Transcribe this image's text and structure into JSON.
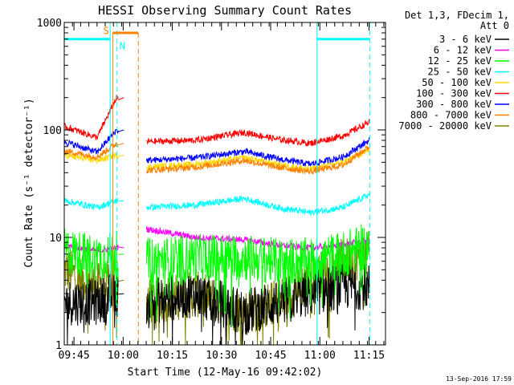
{
  "chart_data": {
    "type": "line",
    "title": "HESSI Observing Summary Count Rates",
    "xlabel": "Start Time (12-May-16 09:42:02)",
    "ylabel": "Count Rate (s⁻¹ detector⁻¹)",
    "yscale": "log",
    "ylim": [
      1,
      1000
    ],
    "y_ticks": [
      {
        "value": 1,
        "label": "1"
      },
      {
        "value": 10,
        "label": "10"
      },
      {
        "value": 100,
        "label": "100"
      },
      {
        "value": 1000,
        "label": "1000"
      }
    ],
    "x_unit": "minutes after 09:42:02",
    "xlim": [
      0,
      98
    ],
    "x_ticks": [
      {
        "value": 2.97,
        "label": "09:45"
      },
      {
        "value": 17.97,
        "label": "10:00"
      },
      {
        "value": 32.97,
        "label": "10:15"
      },
      {
        "value": 47.97,
        "label": "10:30"
      },
      {
        "value": 62.97,
        "label": "10:45"
      },
      {
        "value": 77.97,
        "label": "11:00"
      },
      {
        "value": 92.97,
        "label": "11:15"
      }
    ],
    "legend": {
      "header": [
        "Det 1,3, FDecim 1,",
        "Att 0"
      ],
      "placement": "right"
    },
    "series": [
      {
        "name": "3 - 6 keV",
        "color": "#000000",
        "x": [
          0,
          10,
          16,
          25,
          40,
          55,
          65,
          75,
          85,
          93
        ],
        "values": [
          2.5,
          2.5,
          3.0,
          2.5,
          3.0,
          2.0,
          2.5,
          3.0,
          3.5,
          3.5
        ]
      },
      {
        "name": "6 - 12 keV",
        "color": "#ff00ff",
        "x": [
          0,
          10,
          16,
          25,
          40,
          55,
          65,
          75,
          85,
          93
        ],
        "values": [
          8.5,
          7.5,
          8.0,
          12.0,
          10.0,
          9.5,
          8.5,
          8.0,
          8.5,
          9.5
        ]
      },
      {
        "name": "12 - 25 keV",
        "color": "#00ff00",
        "x": [
          0,
          10,
          16,
          25,
          40,
          55,
          65,
          75,
          85,
          93
        ],
        "values": [
          7.5,
          6.5,
          7.0,
          6.0,
          6.5,
          6.5,
          6.0,
          6.0,
          7.0,
          8.5
        ]
      },
      {
        "name": "25 - 50 keV",
        "color": "#00ffff",
        "x": [
          0,
          10,
          16,
          25,
          40,
          55,
          65,
          75,
          85,
          93
        ],
        "values": [
          22,
          19,
          22,
          19,
          20,
          23,
          19,
          17,
          19,
          25
        ]
      },
      {
        "name": "50 - 100 keV",
        "color": "#ffd700",
        "x": [
          0,
          10,
          16,
          25,
          40,
          55,
          65,
          75,
          85,
          93
        ],
        "values": [
          58,
          52,
          58,
          45,
          48,
          55,
          48,
          43,
          50,
          65
        ]
      },
      {
        "name": "100 - 300 keV",
        "color": "#ff0000",
        "x": [
          0,
          10,
          16,
          25,
          40,
          55,
          65,
          75,
          85,
          93
        ],
        "values": [
          108,
          85,
          200,
          78,
          80,
          95,
          82,
          75,
          88,
          118
        ]
      },
      {
        "name": "300 - 800 keV",
        "color": "#0000ff",
        "x": [
          0,
          10,
          16,
          25,
          40,
          55,
          65,
          75,
          85,
          93
        ],
        "values": [
          78,
          62,
          100,
          52,
          55,
          63,
          54,
          48,
          56,
          80
        ]
      },
      {
        "name": "800 - 7000 keV",
        "color": "#ff8000",
        "x": [
          0,
          10,
          16,
          25,
          40,
          55,
          65,
          75,
          85,
          93
        ],
        "values": [
          64,
          56,
          75,
          42,
          45,
          52,
          45,
          41,
          47,
          70
        ]
      },
      {
        "name": "7000 - 20000 keV",
        "color": "#808000",
        "x": [
          0,
          10,
          16,
          25,
          40,
          55,
          65,
          75,
          85,
          93
        ],
        "values": [
          5.0,
          3.5,
          4.0,
          2.5,
          3.0,
          2.0,
          2.5,
          4.0,
          6.0,
          7.0
        ]
      }
    ],
    "annotations": [
      {
        "text": "S",
        "color": "#ff8000"
      },
      {
        "text": "N",
        "color": "#00ffff"
      }
    ],
    "footer_date": "13-Sep-2016 17:59"
  }
}
